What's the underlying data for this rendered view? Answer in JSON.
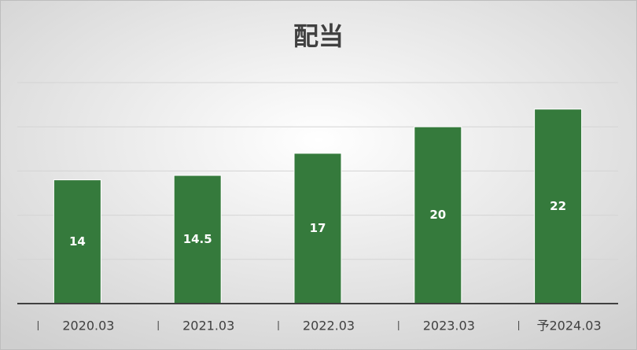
{
  "chart_data": {
    "type": "bar",
    "title": "配当",
    "categories": [
      "2020.03",
      "2021.03",
      "2022.03",
      "2023.03",
      "予2024.03"
    ],
    "values": [
      14,
      14.5,
      17,
      20,
      22
    ],
    "color": "#357a3c",
    "ylim": [
      0,
      25
    ],
    "yticks": [
      0,
      5,
      10,
      15,
      20,
      25
    ],
    "grid": true
  }
}
